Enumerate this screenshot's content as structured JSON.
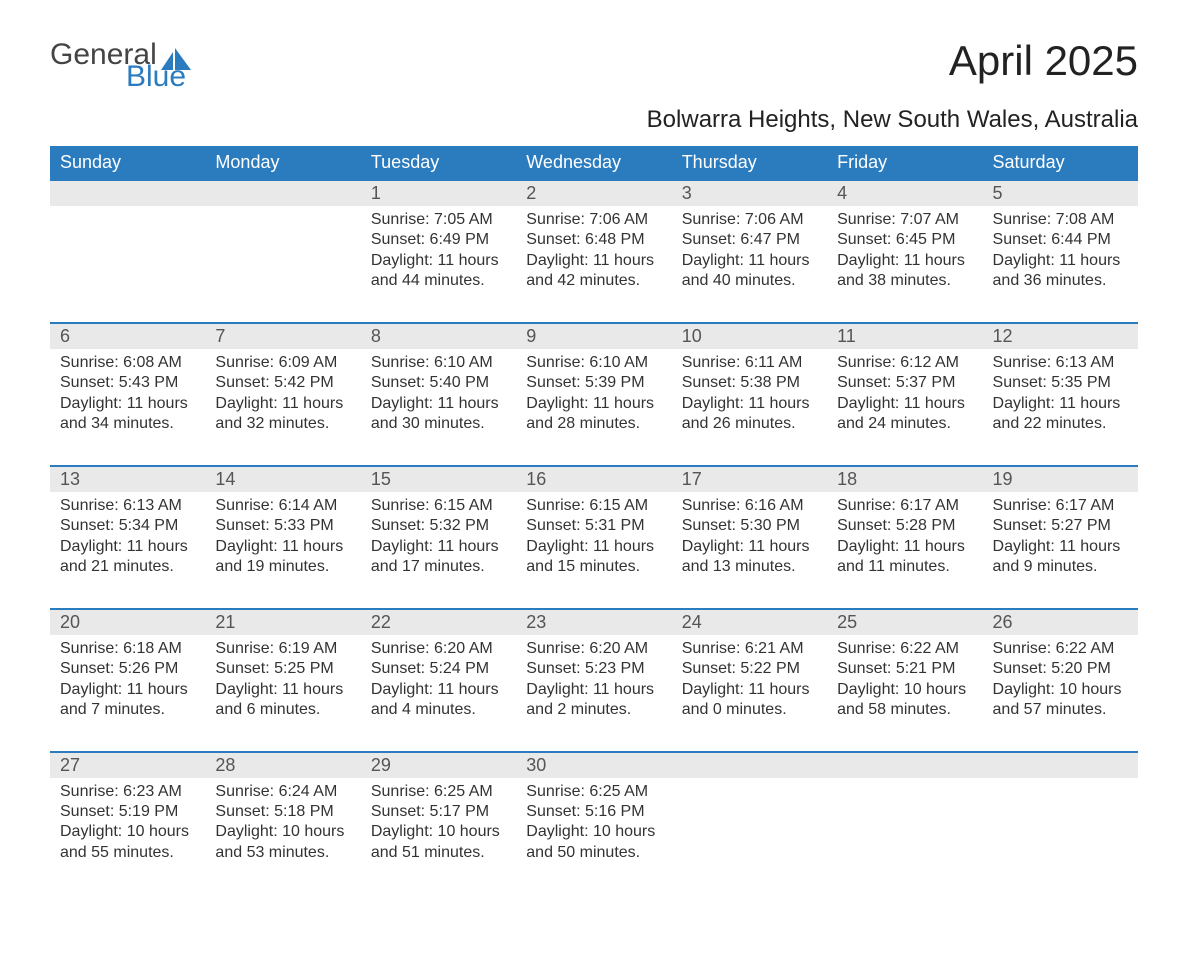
{
  "brand": {
    "word1": "General",
    "word2": "Blue",
    "brand_blue": "#2b7bbf"
  },
  "title": "April 2025",
  "subtitle": "Bolwarra Heights, New South Wales, Australia",
  "days_of_week": [
    "Sunday",
    "Monday",
    "Tuesday",
    "Wednesday",
    "Thursday",
    "Friday",
    "Saturday"
  ],
  "labels": {
    "sunrise": "Sunrise:",
    "sunset": "Sunset:",
    "daylight": "Daylight:"
  },
  "first_weekday_index": 2,
  "days": [
    {
      "n": 1,
      "sunrise": "7:05 AM",
      "sunset": "6:49 PM",
      "daylight": "11 hours and 44 minutes."
    },
    {
      "n": 2,
      "sunrise": "7:06 AM",
      "sunset": "6:48 PM",
      "daylight": "11 hours and 42 minutes."
    },
    {
      "n": 3,
      "sunrise": "7:06 AM",
      "sunset": "6:47 PM",
      "daylight": "11 hours and 40 minutes."
    },
    {
      "n": 4,
      "sunrise": "7:07 AM",
      "sunset": "6:45 PM",
      "daylight": "11 hours and 38 minutes."
    },
    {
      "n": 5,
      "sunrise": "7:08 AM",
      "sunset": "6:44 PM",
      "daylight": "11 hours and 36 minutes."
    },
    {
      "n": 6,
      "sunrise": "6:08 AM",
      "sunset": "5:43 PM",
      "daylight": "11 hours and 34 minutes."
    },
    {
      "n": 7,
      "sunrise": "6:09 AM",
      "sunset": "5:42 PM",
      "daylight": "11 hours and 32 minutes."
    },
    {
      "n": 8,
      "sunrise": "6:10 AM",
      "sunset": "5:40 PM",
      "daylight": "11 hours and 30 minutes."
    },
    {
      "n": 9,
      "sunrise": "6:10 AM",
      "sunset": "5:39 PM",
      "daylight": "11 hours and 28 minutes."
    },
    {
      "n": 10,
      "sunrise": "6:11 AM",
      "sunset": "5:38 PM",
      "daylight": "11 hours and 26 minutes."
    },
    {
      "n": 11,
      "sunrise": "6:12 AM",
      "sunset": "5:37 PM",
      "daylight": "11 hours and 24 minutes."
    },
    {
      "n": 12,
      "sunrise": "6:13 AM",
      "sunset": "5:35 PM",
      "daylight": "11 hours and 22 minutes."
    },
    {
      "n": 13,
      "sunrise": "6:13 AM",
      "sunset": "5:34 PM",
      "daylight": "11 hours and 21 minutes."
    },
    {
      "n": 14,
      "sunrise": "6:14 AM",
      "sunset": "5:33 PM",
      "daylight": "11 hours and 19 minutes."
    },
    {
      "n": 15,
      "sunrise": "6:15 AM",
      "sunset": "5:32 PM",
      "daylight": "11 hours and 17 minutes."
    },
    {
      "n": 16,
      "sunrise": "6:15 AM",
      "sunset": "5:31 PM",
      "daylight": "11 hours and 15 minutes."
    },
    {
      "n": 17,
      "sunrise": "6:16 AM",
      "sunset": "5:30 PM",
      "daylight": "11 hours and 13 minutes."
    },
    {
      "n": 18,
      "sunrise": "6:17 AM",
      "sunset": "5:28 PM",
      "daylight": "11 hours and 11 minutes."
    },
    {
      "n": 19,
      "sunrise": "6:17 AM",
      "sunset": "5:27 PM",
      "daylight": "11 hours and 9 minutes."
    },
    {
      "n": 20,
      "sunrise": "6:18 AM",
      "sunset": "5:26 PM",
      "daylight": "11 hours and 7 minutes."
    },
    {
      "n": 21,
      "sunrise": "6:19 AM",
      "sunset": "5:25 PM",
      "daylight": "11 hours and 6 minutes."
    },
    {
      "n": 22,
      "sunrise": "6:20 AM",
      "sunset": "5:24 PM",
      "daylight": "11 hours and 4 minutes."
    },
    {
      "n": 23,
      "sunrise": "6:20 AM",
      "sunset": "5:23 PM",
      "daylight": "11 hours and 2 minutes."
    },
    {
      "n": 24,
      "sunrise": "6:21 AM",
      "sunset": "5:22 PM",
      "daylight": "11 hours and 0 minutes."
    },
    {
      "n": 25,
      "sunrise": "6:22 AM",
      "sunset": "5:21 PM",
      "daylight": "10 hours and 58 minutes."
    },
    {
      "n": 26,
      "sunrise": "6:22 AM",
      "sunset": "5:20 PM",
      "daylight": "10 hours and 57 minutes."
    },
    {
      "n": 27,
      "sunrise": "6:23 AM",
      "sunset": "5:19 PM",
      "daylight": "10 hours and 55 minutes."
    },
    {
      "n": 28,
      "sunrise": "6:24 AM",
      "sunset": "5:18 PM",
      "daylight": "10 hours and 53 minutes."
    },
    {
      "n": 29,
      "sunrise": "6:25 AM",
      "sunset": "5:17 PM",
      "daylight": "10 hours and 51 minutes."
    },
    {
      "n": 30,
      "sunrise": "6:25 AM",
      "sunset": "5:16 PM",
      "daylight": "10 hours and 50 minutes."
    }
  ],
  "style": {
    "header_bg": "#2b7bbf",
    "header_fg": "#ffffff",
    "daynum_bg": "#e9e9e9",
    "rule_color": "#2b7bbf",
    "body_font_size": 16,
    "title_font_size": 42,
    "subtitle_font_size": 24
  }
}
